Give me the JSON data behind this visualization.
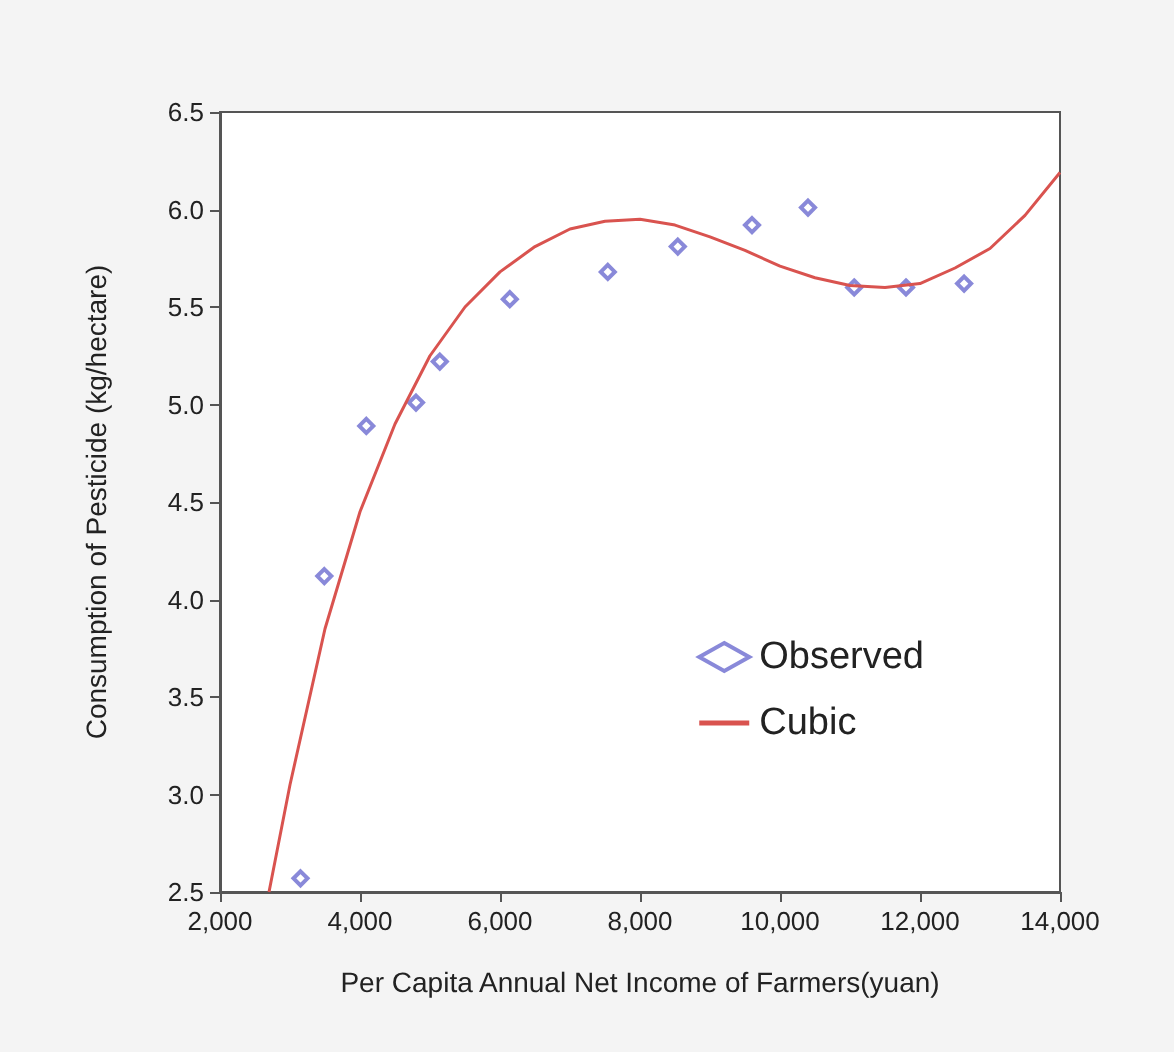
{
  "chart_data": {
    "type": "scatter",
    "xlabel": "Per Capita Annual Net Income of Farmers(yuan)",
    "ylabel": "Consumption of Pesticide (kg/hectare)",
    "xlim": [
      2000,
      14000
    ],
    "xticks": [
      {
        "value": 2000,
        "label": "2,000"
      },
      {
        "value": 4000,
        "label": "4,000"
      },
      {
        "value": 6000,
        "label": "6,000"
      },
      {
        "value": 8000,
        "label": "8,000"
      },
      {
        "value": 10000,
        "label": "10,000"
      },
      {
        "value": 12000,
        "label": "12,000"
      },
      {
        "value": 14000,
        "label": "14,000"
      }
    ],
    "ylim": [
      2.5,
      6.5
    ],
    "yticks": [
      {
        "value": 2.5,
        "label": "2.5"
      },
      {
        "value": 3,
        "label": "3.0"
      },
      {
        "value": 3.5,
        "label": "3.5"
      },
      {
        "value": 4,
        "label": "4.0"
      },
      {
        "value": 4.5,
        "label": "4.5"
      },
      {
        "value": 5,
        "label": "5.0"
      },
      {
        "value": 5.5,
        "label": "5.5"
      },
      {
        "value": 6,
        "label": "6.0"
      },
      {
        "value": 6.5,
        "label": "6.5"
      }
    ],
    "grid": false,
    "legend": "bottom right",
    "marker": "diamond",
    "series": [
      {
        "name": "Observed",
        "color": "#6b6bd0",
        "x": [
          3150,
          3490,
          4090,
          4800,
          5140,
          6140,
          7540,
          8540,
          9600,
          10400,
          11060,
          11800,
          12630
        ],
        "values": [
          2.57,
          4.12,
          4.89,
          5.01,
          5.22,
          5.54,
          5.68,
          5.81,
          5.92,
          6.01,
          5.6,
          5.6,
          5.62
        ]
      },
      {
        "name": "Cubic",
        "type": "line",
        "marker": "none",
        "color": "#d9534f",
        "x": [
          2700,
          3000,
          3500,
          4000,
          4500,
          5000,
          5500,
          6000,
          6500,
          7000,
          7500,
          8000,
          8500,
          9000,
          9500,
          10000,
          10500,
          11000,
          11500,
          12000,
          12500,
          13000,
          13500,
          14000
        ],
        "values": [
          2.5,
          3.05,
          3.85,
          4.45,
          4.9,
          5.25,
          5.5,
          5.68,
          5.81,
          5.9,
          5.94,
          5.95,
          5.92,
          5.86,
          5.79,
          5.71,
          5.65,
          5.61,
          5.6,
          5.62,
          5.7,
          5.8,
          5.97,
          6.19
        ]
      }
    ]
  }
}
